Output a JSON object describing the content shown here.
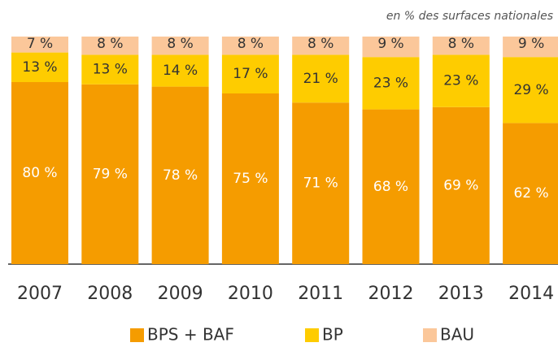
{
  "chart_data": {
    "type": "stacked_bar",
    "subtitle": "en % des surfaces nationales",
    "categories": [
      "2007",
      "2008",
      "2009",
      "2010",
      "2011",
      "2012",
      "2013",
      "2014"
    ],
    "ylim": [
      0,
      100
    ],
    "series": [
      {
        "name": "BPS + BAF",
        "color": "#f59c00",
        "values": [
          80,
          79,
          78,
          75,
          71,
          68,
          69,
          62
        ],
        "value_labels": [
          "80 %",
          "79 %",
          "78 %",
          "75 %",
          "71 %",
          "68 %",
          "69 %",
          "62 %"
        ]
      },
      {
        "name": "BP",
        "color": "#fecc00",
        "values": [
          13,
          13,
          14,
          17,
          21,
          23,
          23,
          29
        ],
        "value_labels": [
          "13 %",
          "13 %",
          "14 %",
          "17 %",
          "21 %",
          "23 %",
          "23 %",
          "29 %"
        ]
      },
      {
        "name": "BAU",
        "color": "#fbc79a",
        "values": [
          7,
          8,
          8,
          8,
          8,
          9,
          8,
          9
        ],
        "value_labels": [
          "7 %",
          "8 %",
          "8 %",
          "8 %",
          "8 %",
          "9 %",
          "8 %",
          "9 %"
        ]
      }
    ]
  }
}
